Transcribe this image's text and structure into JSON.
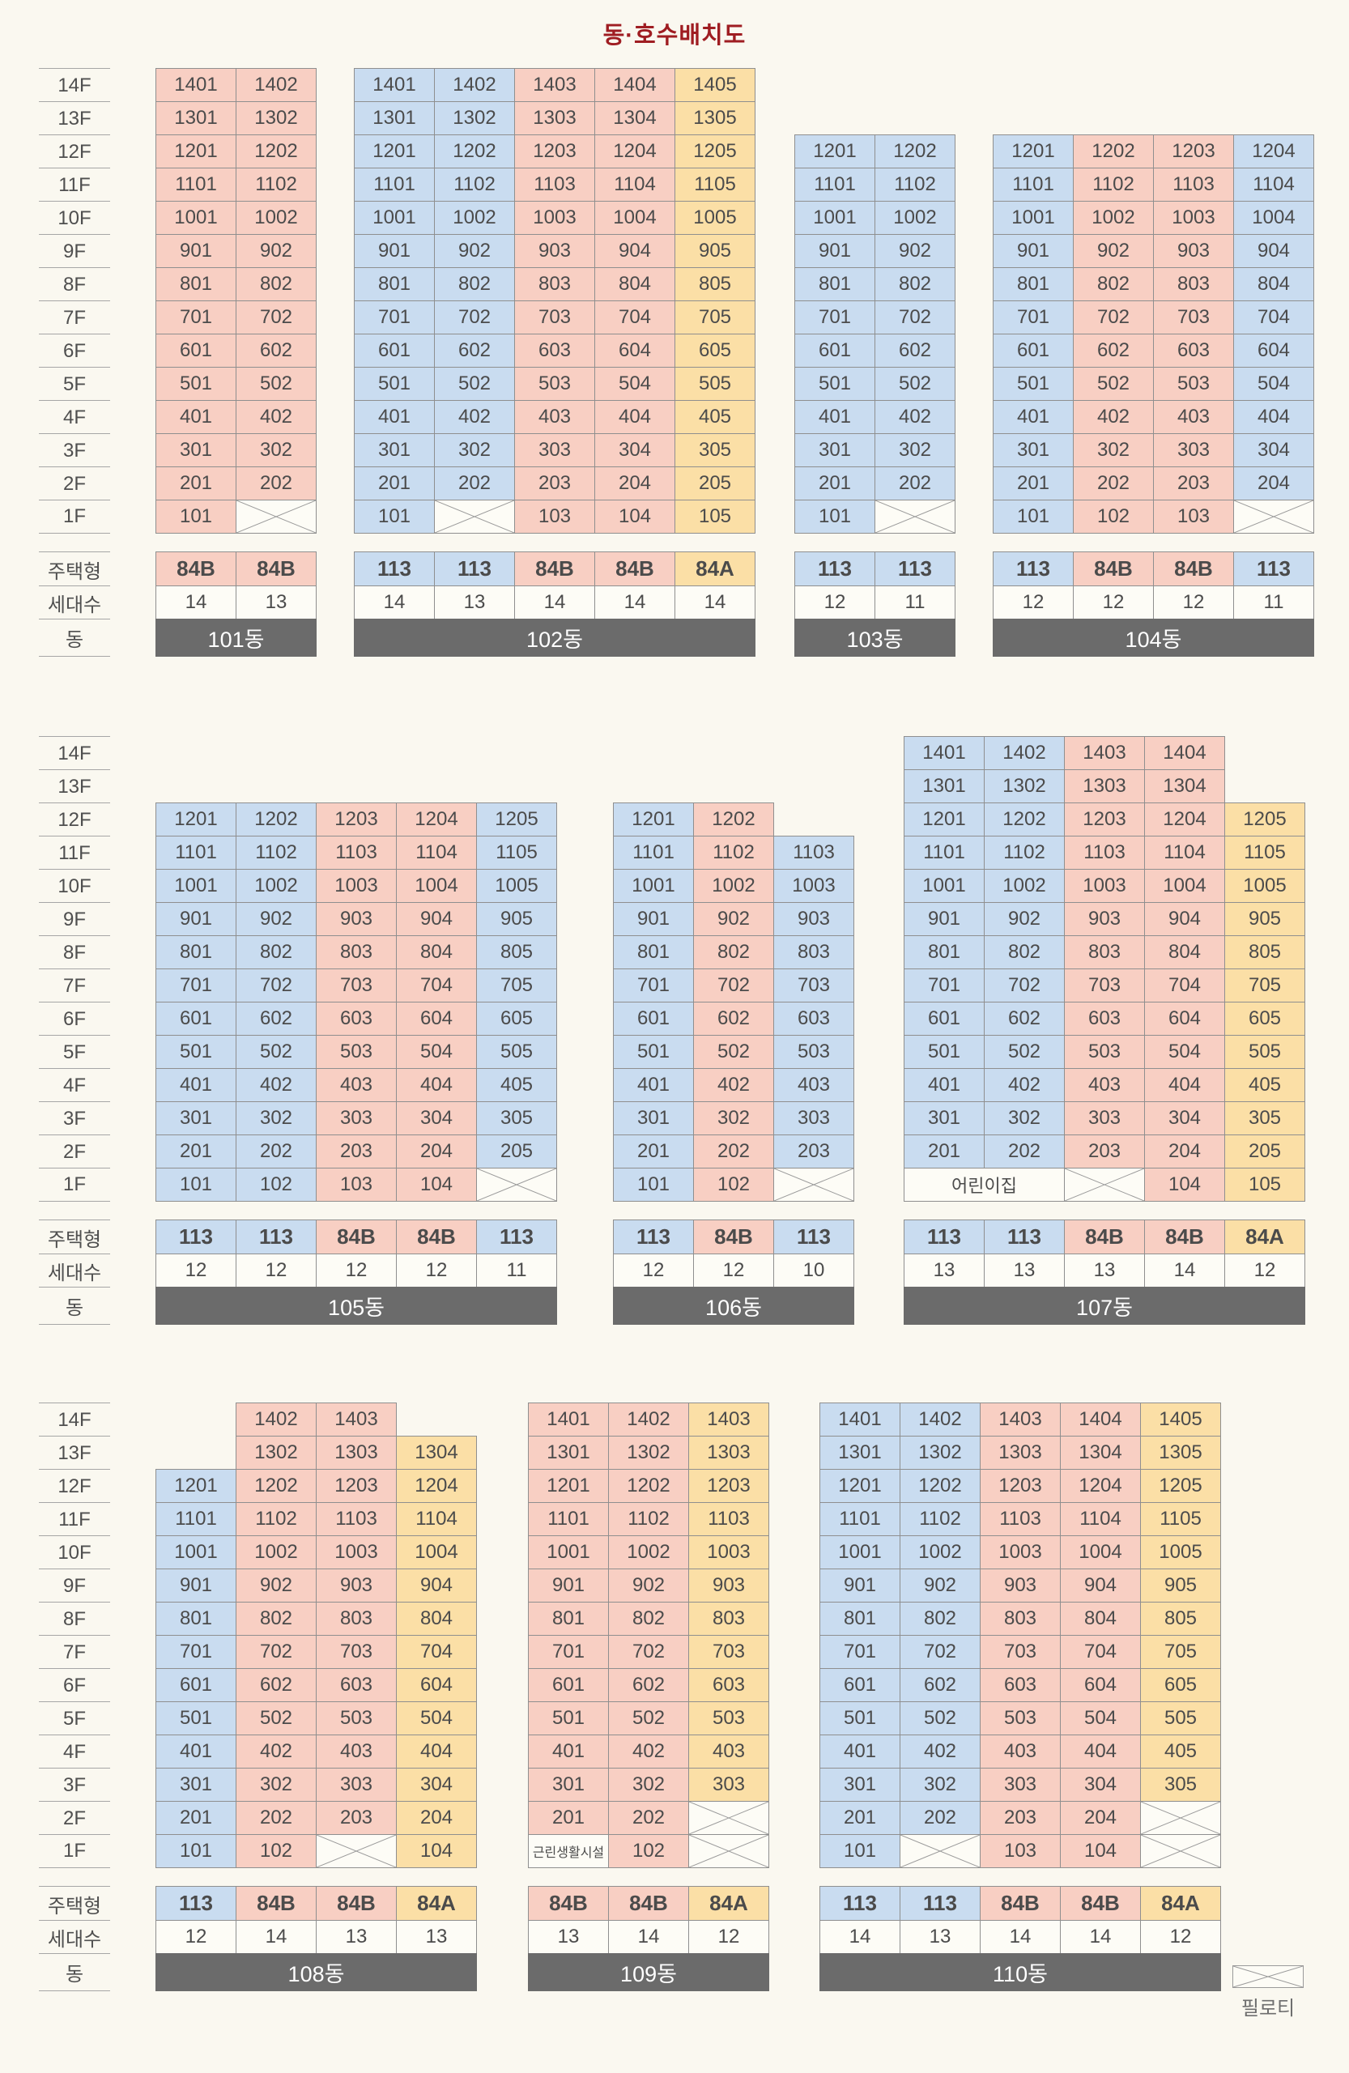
{
  "title": "동·호수배치도",
  "legend": {
    "label": "필로티"
  },
  "row_labels": {
    "floors": [
      "14F",
      "13F",
      "12F",
      "11F",
      "10F",
      "9F",
      "8F",
      "7F",
      "6F",
      "5F",
      "4F",
      "3F",
      "2F",
      "1F"
    ],
    "type": "주택형",
    "count": "세대수",
    "building": "동"
  },
  "unit_type_colors": {
    "113": "#c9dcf0",
    "84B": "#f8cfc3",
    "84A": "#fbdfa6"
  },
  "colors": {
    "background": "#faf8f0",
    "white_cell": "#fdfcf6",
    "border": "#8f8f8f",
    "rule": "#a6a6a6",
    "text": "#4b4b4b",
    "bar": "#6b6b6b",
    "bar_text": "#ffffff",
    "title": "#9f1d22",
    "x_line": "#9a9a9a"
  },
  "building_rows": [
    [
      {
        "name": "101동",
        "unit_types": [
          "84B",
          "84B"
        ],
        "household_counts": [
          14,
          13
        ],
        "floors": [
          [
            "1401",
            "1402"
          ],
          [
            "1301",
            "1302"
          ],
          [
            "1201",
            "1202"
          ],
          [
            "1101",
            "1102"
          ],
          [
            "1001",
            "1002"
          ],
          [
            "901",
            "902"
          ],
          [
            "801",
            "802"
          ],
          [
            "701",
            "702"
          ],
          [
            "601",
            "602"
          ],
          [
            "501",
            "502"
          ],
          [
            "401",
            "402"
          ],
          [
            "301",
            "302"
          ],
          [
            "201",
            "202"
          ],
          [
            "101",
            "X"
          ]
        ]
      },
      {
        "name": "102동",
        "unit_types": [
          "113",
          "113",
          "84B",
          "84B",
          "84A"
        ],
        "household_counts": [
          14,
          13,
          14,
          14,
          14
        ],
        "floors": [
          [
            "1401",
            "1402",
            "1403",
            "1404",
            "1405"
          ],
          [
            "1301",
            "1302",
            "1303",
            "1304",
            "1305"
          ],
          [
            "1201",
            "1202",
            "1203",
            "1204",
            "1205"
          ],
          [
            "1101",
            "1102",
            "1103",
            "1104",
            "1105"
          ],
          [
            "1001",
            "1002",
            "1003",
            "1004",
            "1005"
          ],
          [
            "901",
            "902",
            "903",
            "904",
            "905"
          ],
          [
            "801",
            "802",
            "803",
            "804",
            "805"
          ],
          [
            "701",
            "702",
            "703",
            "704",
            "705"
          ],
          [
            "601",
            "602",
            "603",
            "604",
            "605"
          ],
          [
            "501",
            "502",
            "503",
            "504",
            "505"
          ],
          [
            "401",
            "402",
            "403",
            "404",
            "405"
          ],
          [
            "301",
            "302",
            "303",
            "304",
            "305"
          ],
          [
            "201",
            "202",
            "203",
            "204",
            "205"
          ],
          [
            "101",
            "X",
            "103",
            "104",
            "105"
          ]
        ]
      },
      {
        "name": "103동",
        "unit_types": [
          "113",
          "113"
        ],
        "household_counts": [
          12,
          11
        ],
        "floors": [
          null,
          null,
          [
            "1201",
            "1202"
          ],
          [
            "1101",
            "1102"
          ],
          [
            "1001",
            "1002"
          ],
          [
            "901",
            "902"
          ],
          [
            "801",
            "802"
          ],
          [
            "701",
            "702"
          ],
          [
            "601",
            "602"
          ],
          [
            "501",
            "502"
          ],
          [
            "401",
            "402"
          ],
          [
            "301",
            "302"
          ],
          [
            "201",
            "202"
          ],
          [
            "101",
            "X"
          ]
        ]
      },
      {
        "name": "104동",
        "unit_types": [
          "113",
          "84B",
          "84B",
          "113"
        ],
        "household_counts": [
          12,
          12,
          12,
          11
        ],
        "floors": [
          null,
          null,
          [
            "1201",
            "1202",
            "1203",
            "1204"
          ],
          [
            "1101",
            "1102",
            "1103",
            "1104"
          ],
          [
            "1001",
            "1002",
            "1003",
            "1004"
          ],
          [
            "901",
            "902",
            "903",
            "904"
          ],
          [
            "801",
            "802",
            "803",
            "804"
          ],
          [
            "701",
            "702",
            "703",
            "704"
          ],
          [
            "601",
            "602",
            "603",
            "604"
          ],
          [
            "501",
            "502",
            "503",
            "504"
          ],
          [
            "401",
            "402",
            "403",
            "404"
          ],
          [
            "301",
            "302",
            "303",
            "304"
          ],
          [
            "201",
            "202",
            "203",
            "204"
          ],
          [
            "101",
            "102",
            "103",
            "X"
          ]
        ]
      }
    ],
    [
      {
        "name": "105동",
        "unit_types": [
          "113",
          "113",
          "84B",
          "84B",
          "113"
        ],
        "household_counts": [
          12,
          12,
          12,
          12,
          11
        ],
        "floors": [
          null,
          null,
          [
            "1201",
            "1202",
            "1203",
            "1204",
            "1205"
          ],
          [
            "1101",
            "1102",
            "1103",
            "1104",
            "1105"
          ],
          [
            "1001",
            "1002",
            "1003",
            "1004",
            "1005"
          ],
          [
            "901",
            "902",
            "903",
            "904",
            "905"
          ],
          [
            "801",
            "802",
            "803",
            "804",
            "805"
          ],
          [
            "701",
            "702",
            "703",
            "704",
            "705"
          ],
          [
            "601",
            "602",
            "603",
            "604",
            "605"
          ],
          [
            "501",
            "502",
            "503",
            "504",
            "505"
          ],
          [
            "401",
            "402",
            "403",
            "404",
            "405"
          ],
          [
            "301",
            "302",
            "303",
            "304",
            "305"
          ],
          [
            "201",
            "202",
            "203",
            "204",
            "205"
          ],
          [
            "101",
            "102",
            "103",
            "104",
            "X"
          ]
        ]
      },
      {
        "name": "106동",
        "unit_types": [
          "113",
          "84B",
          "113"
        ],
        "household_counts": [
          12,
          12,
          10
        ],
        "floors": [
          null,
          null,
          [
            "1201",
            "1202",
            null
          ],
          [
            "1101",
            "1102",
            "1103"
          ],
          [
            "1001",
            "1002",
            "1003"
          ],
          [
            "901",
            "902",
            "903"
          ],
          [
            "801",
            "802",
            "803"
          ],
          [
            "701",
            "702",
            "703"
          ],
          [
            "601",
            "602",
            "603"
          ],
          [
            "501",
            "502",
            "503"
          ],
          [
            "401",
            "402",
            "403"
          ],
          [
            "301",
            "302",
            "303"
          ],
          [
            "201",
            "202",
            "203"
          ],
          [
            "101",
            "102",
            "X"
          ]
        ]
      },
      {
        "name": "107동",
        "unit_types": [
          "113",
          "113",
          "84B",
          "84B",
          "84A"
        ],
        "household_counts": [
          13,
          13,
          13,
          14,
          12
        ],
        "floors": [
          [
            "1401",
            "1402",
            "1403",
            "1404",
            null
          ],
          [
            "1301",
            "1302",
            "1303",
            "1304",
            null
          ],
          [
            "1201",
            "1202",
            "1203",
            "1204",
            "1205"
          ],
          [
            "1101",
            "1102",
            "1103",
            "1104",
            "1105"
          ],
          [
            "1001",
            "1002",
            "1003",
            "1004",
            "1005"
          ],
          [
            "901",
            "902",
            "903",
            "904",
            "905"
          ],
          [
            "801",
            "802",
            "803",
            "804",
            "805"
          ],
          [
            "701",
            "702",
            "703",
            "704",
            "705"
          ],
          [
            "601",
            "602",
            "603",
            "604",
            "605"
          ],
          [
            "501",
            "502",
            "503",
            "504",
            "505"
          ],
          [
            "401",
            "402",
            "403",
            "404",
            "405"
          ],
          [
            "301",
            "302",
            "303",
            "304",
            "305"
          ],
          [
            "201",
            "202",
            "203",
            "204",
            "205"
          ],
          [
            {
              "label": "어린이집",
              "span": 2
            },
            "X",
            "104",
            "105"
          ]
        ]
      }
    ],
    [
      {
        "name": "108동",
        "unit_types": [
          "113",
          "84B",
          "84B",
          "84A"
        ],
        "household_counts": [
          12,
          14,
          13,
          13
        ],
        "floors": [
          [
            null,
            "1402",
            "1403",
            null
          ],
          [
            null,
            "1302",
            "1303",
            "1304"
          ],
          [
            "1201",
            "1202",
            "1203",
            "1204"
          ],
          [
            "1101",
            "1102",
            "1103",
            "1104"
          ],
          [
            "1001",
            "1002",
            "1003",
            "1004"
          ],
          [
            "901",
            "902",
            "903",
            "904"
          ],
          [
            "801",
            "802",
            "803",
            "804"
          ],
          [
            "701",
            "702",
            "703",
            "704"
          ],
          [
            "601",
            "602",
            "603",
            "604"
          ],
          [
            "501",
            "502",
            "503",
            "504"
          ],
          [
            "401",
            "402",
            "403",
            "404"
          ],
          [
            "301",
            "302",
            "303",
            "304"
          ],
          [
            "201",
            "202",
            "203",
            "204"
          ],
          [
            "101",
            "102",
            "X",
            "104"
          ]
        ]
      },
      {
        "name": "109동",
        "unit_types": [
          "84B",
          "84B",
          "84A"
        ],
        "household_counts": [
          13,
          14,
          12
        ],
        "floors": [
          [
            "1401",
            "1402",
            "1403"
          ],
          [
            "1301",
            "1302",
            "1303"
          ],
          [
            "1201",
            "1202",
            "1203"
          ],
          [
            "1101",
            "1102",
            "1103"
          ],
          [
            "1001",
            "1002",
            "1003"
          ],
          [
            "901",
            "902",
            "903"
          ],
          [
            "801",
            "802",
            "803"
          ],
          [
            "701",
            "702",
            "703"
          ],
          [
            "601",
            "602",
            "603"
          ],
          [
            "501",
            "502",
            "503"
          ],
          [
            "401",
            "402",
            "403"
          ],
          [
            "301",
            "302",
            "303"
          ],
          [
            "201",
            "202",
            "X"
          ],
          [
            {
              "label": "근린생활시설",
              "span": 1
            },
            "102",
            "X"
          ]
        ]
      },
      {
        "name": "110동",
        "unit_types": [
          "113",
          "113",
          "84B",
          "84B",
          "84A"
        ],
        "household_counts": [
          14,
          13,
          14,
          14,
          12
        ],
        "floors": [
          [
            "1401",
            "1402",
            "1403",
            "1404",
            "1405"
          ],
          [
            "1301",
            "1302",
            "1303",
            "1304",
            "1305"
          ],
          [
            "1201",
            "1202",
            "1203",
            "1204",
            "1205"
          ],
          [
            "1101",
            "1102",
            "1103",
            "1104",
            "1105"
          ],
          [
            "1001",
            "1002",
            "1003",
            "1004",
            "1005"
          ],
          [
            "901",
            "902",
            "903",
            "904",
            "905"
          ],
          [
            "801",
            "802",
            "803",
            "804",
            "805"
          ],
          [
            "701",
            "702",
            "703",
            "704",
            "705"
          ],
          [
            "601",
            "602",
            "603",
            "604",
            "605"
          ],
          [
            "501",
            "502",
            "503",
            "504",
            "505"
          ],
          [
            "401",
            "402",
            "403",
            "404",
            "405"
          ],
          [
            "301",
            "302",
            "303",
            "304",
            "305"
          ],
          [
            "201",
            "202",
            "203",
            "204",
            "X"
          ],
          [
            "101",
            "X",
            "103",
            "104",
            "X"
          ]
        ]
      }
    ]
  ]
}
